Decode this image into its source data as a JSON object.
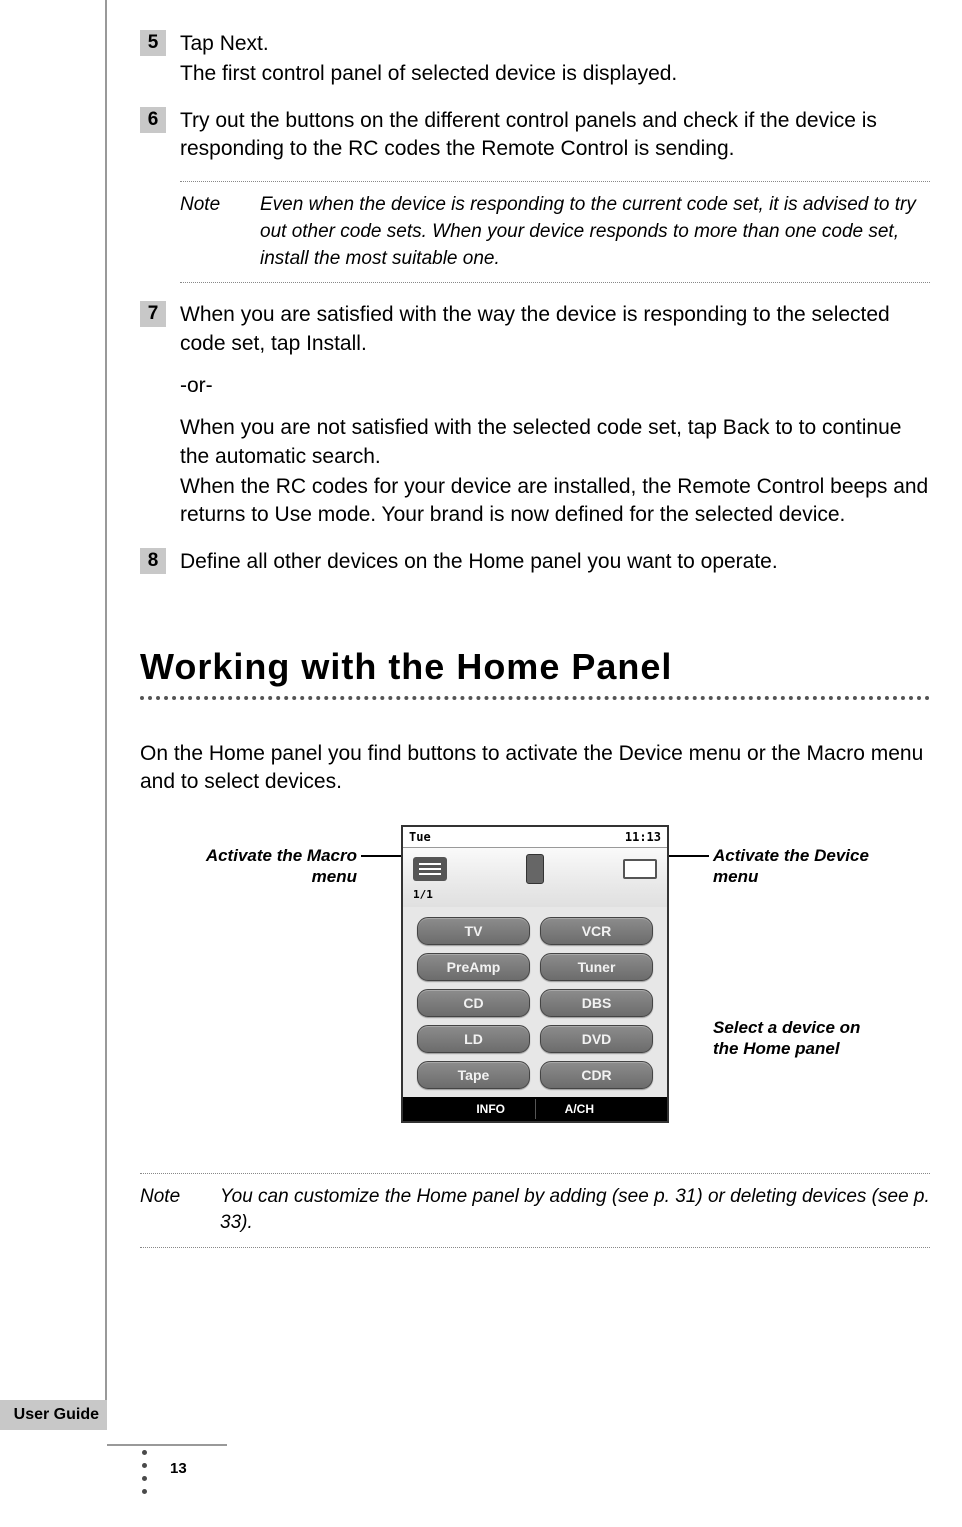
{
  "steps": {
    "s5": {
      "num": "5",
      "title": "Tap Next.",
      "line2": "The first control panel of selected device is displayed."
    },
    "s6": {
      "num": "6",
      "title": "Try out the buttons on the different control panels and check if the device is responding to the RC codes the Remote Control is sending."
    },
    "note1": {
      "label": "Note",
      "text": "Even when the device is responding to the current code set, it is advised to try out other code sets. When your device responds to more than one code set, install the most suitable one."
    },
    "s7": {
      "num": "7",
      "p1": "When you are satisfied with the way the device is responding to the selected code set, tap Install.",
      "or": "-or-",
      "p2": "When you are not satisfied with the selected code set, tap Back to to continue the automatic search.",
      "p3": "When the RC codes for your device are installed, the Remote Control beeps and returns to Use mode. Your brand is now defined for the selected device."
    },
    "s8": {
      "num": "8",
      "title": "Define all other devices on the Home panel you want to operate."
    }
  },
  "heading": "Working with the Home Panel",
  "intro": "On the Home panel you find buttons to activate the Device menu or the Macro menu and to select devices.",
  "figure": {
    "callout_left": "Activate the Macro menu",
    "callout_right_top": "Activate the Device menu",
    "callout_right_bottom": "Select a device on the Home panel",
    "topbar_day": "Tue",
    "topbar_time": "11:13",
    "page_indicator": "1/1",
    "buttons": [
      "TV",
      "VCR",
      "PreAmp",
      "Tuner",
      "CD",
      "DBS",
      "LD",
      "DVD",
      "Tape",
      "CDR"
    ],
    "bottom_left": "INFO",
    "bottom_right": "A/CH"
  },
  "note2": {
    "label": "Note",
    "text": "You can customize the Home panel by adding (see p. 31) or deleting devices (see p. 33)."
  },
  "footer": {
    "label": "User Guide",
    "page": "13"
  },
  "colors": {
    "step_bg": "#c8c8c8",
    "rule": "#999999",
    "btn_bg": "#7a7a7a",
    "screen_bg": "#e7e7e7"
  }
}
